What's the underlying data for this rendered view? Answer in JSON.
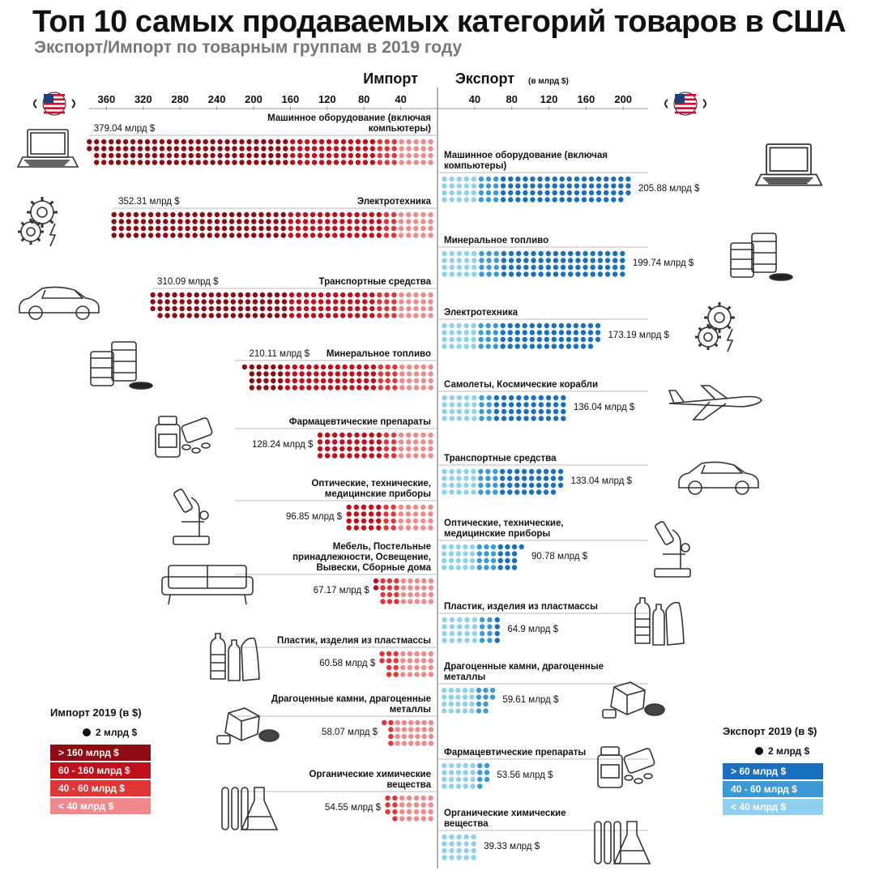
{
  "title": "Топ 10 самых продаваемых категорий товаров в США",
  "subtitle": "Экспорт/Импорт по товарным группам в 2019 году",
  "import_axis_label": "Импорт",
  "export_axis_label": "Экспорт",
  "export_axis_unit": "(в млрд $)",
  "icons": [
    "us-flag-icon",
    "laptop-icon",
    "gears-icon",
    "car-icon",
    "oil-barrels-icon",
    "pills-icon",
    "microscope-icon",
    "sofa-icon",
    "plastic-bottles-icon",
    "gems-icon",
    "test-tubes-icon",
    "airplane-icon"
  ],
  "legend_import": {
    "title": "Импорт 2019 (в $)",
    "dot_label": "2 млрд $",
    "tiers": [
      {
        "label": "> 160 млрд $",
        "color": "#8e0b13"
      },
      {
        "label": "60 - 160 млрд $",
        "color": "#c0101c"
      },
      {
        "label": "40 - 60 млрд $",
        "color": "#e23636"
      },
      {
        "label": "< 40 млрд $",
        "color": "#f08a8a"
      }
    ]
  },
  "legend_export": {
    "title": "Экспорт 2019 (в $)",
    "dot_label": "2 млрд $",
    "tiers": [
      {
        "label": "> 60 млрд $",
        "color": "#1a6fbf"
      },
      {
        "label": "40 - 60 млрд $",
        "color": "#3b9ad6"
      },
      {
        "label": "< 40 млрд $",
        "color": "#8fd0ee"
      }
    ]
  },
  "chart_data": [
    {
      "type": "bar",
      "title": "Импорт",
      "categories": [
        "Машинное оборудование (включая компьютеры)",
        "Электротехника",
        "Транспортные средства",
        "Минеральное топливо",
        "Фармацевтические препараты",
        "Оптические, технические, медицинские приборы",
        "Мебель, Постельные принадлежности, Освещение, Вывески, Сборные дома",
        "Пластик, изделия из пластмассы",
        "Драгоценные камни, драгоценные металлы",
        "Органические химические вещества"
      ],
      "values": [
        379.04,
        352.31,
        310.09,
        210.11,
        128.24,
        96.85,
        67.17,
        60.58,
        58.07,
        54.55
      ],
      "value_labels": [
        "379.04 млрд $",
        "352.31 млрд $",
        "310.09 млрд $",
        "210.11 млрд $",
        "128.24 млрд $",
        "96.85 млрд $",
        "67.17 млрд $",
        "60.58 млрд $",
        "58.07 млрд $",
        "54.55 млрд $"
      ],
      "ticks": [
        360,
        320,
        280,
        240,
        200,
        160,
        120,
        80,
        40
      ],
      "xlim": [
        0,
        380
      ],
      "unit": "млрд $",
      "dot_value": 2
    },
    {
      "type": "bar",
      "title": "Экспорт",
      "categories": [
        "Машинное оборудование (включая компьютеры)",
        "Минеральное топливо",
        "Электротехника",
        "Самолеты, Космические корабли",
        "Транспортные средства",
        "Оптические, технические, медицинские приборы",
        "Пластик, изделия из пластмассы",
        "Драгоценные камни, драгоценные металлы",
        "Фармацевтические препараты",
        "Органические химические вещества"
      ],
      "values": [
        205.88,
        199.74,
        173.19,
        136.04,
        133.04,
        90.78,
        64.9,
        59.61,
        53.56,
        39.33
      ],
      "value_labels": [
        "205.88 млрд $",
        "199.74 млрд $",
        "173.19 млрд $",
        "136.04 млрд $",
        "133.04 млрд $",
        "90.78 млрд $",
        "64.9 млрд $",
        "59.61 млрд $",
        "53.56 млрд $",
        "39.33 млрд $"
      ],
      "ticks": [
        40,
        80,
        120,
        160,
        200
      ],
      "xlim": [
        0,
        210
      ],
      "unit": "млрд $",
      "dot_value": 2
    }
  ]
}
